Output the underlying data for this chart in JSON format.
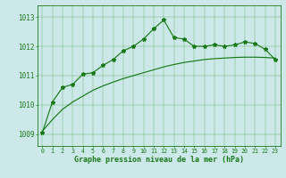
{
  "line_marked_x": [
    0,
    1,
    2,
    3,
    4,
    5,
    6,
    7,
    8,
    9,
    10,
    11,
    12,
    13,
    14,
    15,
    16,
    17,
    18,
    19,
    20,
    21,
    22,
    23
  ],
  "line_marked_y": [
    1009.05,
    1010.1,
    1010.6,
    1010.7,
    1011.05,
    1011.1,
    1011.35,
    1011.55,
    1011.85,
    1012.0,
    1012.25,
    1012.6,
    1012.9,
    1012.3,
    1012.25,
    1012.0,
    1012.0,
    1012.05,
    1012.0,
    1012.05,
    1012.15,
    1012.1,
    1011.9,
    1011.55
  ],
  "line_smooth_x": [
    0,
    1,
    2,
    3,
    4,
    5,
    6,
    7,
    8,
    9,
    10,
    11,
    12,
    13,
    14,
    15,
    16,
    17,
    18,
    19,
    20,
    21,
    22,
    23
  ],
  "line_smooth_y": [
    1009.1,
    1009.5,
    1009.85,
    1010.1,
    1010.3,
    1010.5,
    1010.65,
    1010.78,
    1010.9,
    1011.0,
    1011.1,
    1011.2,
    1011.3,
    1011.38,
    1011.45,
    1011.5,
    1011.55,
    1011.58,
    1011.6,
    1011.62,
    1011.63,
    1011.63,
    1011.62,
    1011.6
  ],
  "line_color": "#1a7a1a",
  "bg_color": "#cce8e8",
  "xlabel": "Graphe pression niveau de la mer (hPa)",
  "yticks": [
    1009,
    1010,
    1011,
    1012,
    1013
  ],
  "xticks": [
    0,
    1,
    2,
    3,
    4,
    5,
    6,
    7,
    8,
    9,
    10,
    11,
    12,
    13,
    14,
    15,
    16,
    17,
    18,
    19,
    20,
    21,
    22,
    23
  ],
  "ylim": [
    1008.6,
    1013.4
  ],
  "xlim": [
    -0.5,
    23.5
  ]
}
